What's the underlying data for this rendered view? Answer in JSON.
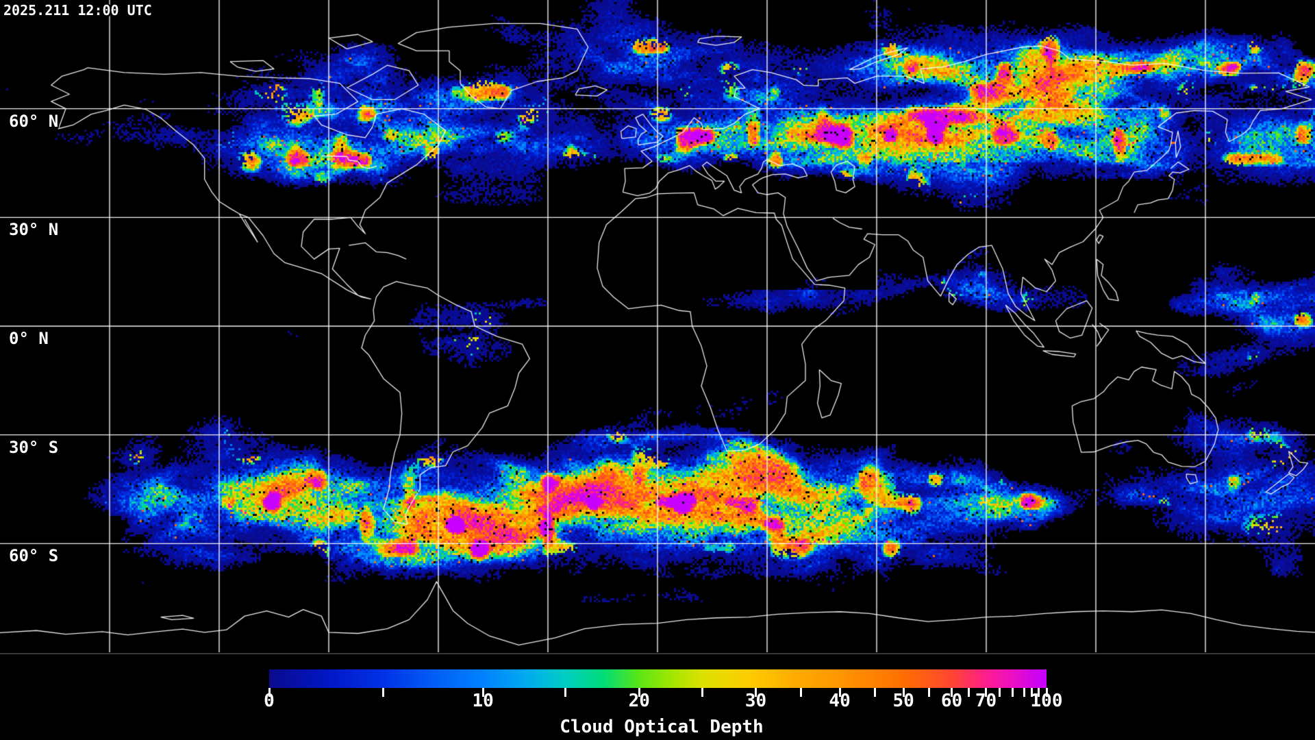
{
  "header": {
    "timestamp": "2025.211 12:00 UTC"
  },
  "map": {
    "latitude_labels": [
      {
        "label": "60° N",
        "lat": 60
      },
      {
        "label": "30° N",
        "lat": 30
      },
      {
        "label": "0° N",
        "lat": 0
      },
      {
        "label": "30° S",
        "lat": -30
      },
      {
        "label": "60° S",
        "lat": -60
      }
    ],
    "grid": {
      "lat_step_deg": 30,
      "lon_step_deg": 30,
      "line_color": "#ffffff"
    },
    "coastline_color": "#ffffff",
    "background_color": "#000000"
  },
  "colorbar": {
    "title": "Cloud Optical Depth",
    "min": 0,
    "max": 100,
    "text_color": "#ffffff",
    "ticks": [
      {
        "value": 0,
        "frac": 0.0,
        "labeled": true
      },
      {
        "value": 5,
        "frac": 0.147,
        "labeled": false
      },
      {
        "value": 10,
        "frac": 0.275,
        "labeled": true
      },
      {
        "value": 15,
        "frac": 0.381,
        "labeled": false
      },
      {
        "value": 20,
        "frac": 0.476,
        "labeled": true
      },
      {
        "value": 25,
        "frac": 0.557,
        "labeled": false
      },
      {
        "value": 30,
        "frac": 0.626,
        "labeled": true
      },
      {
        "value": 35,
        "frac": 0.684,
        "labeled": false
      },
      {
        "value": 40,
        "frac": 0.734,
        "labeled": true
      },
      {
        "value": 45,
        "frac": 0.779,
        "labeled": false
      },
      {
        "value": 50,
        "frac": 0.816,
        "labeled": true
      },
      {
        "value": 55,
        "frac": 0.849,
        "labeled": false
      },
      {
        "value": 60,
        "frac": 0.878,
        "labeled": true
      },
      {
        "value": 65,
        "frac": 0.9,
        "labeled": false
      },
      {
        "value": 70,
        "frac": 0.922,
        "labeled": true
      },
      {
        "value": 75,
        "frac": 0.94,
        "labeled": false
      },
      {
        "value": 80,
        "frac": 0.956,
        "labeled": false
      },
      {
        "value": 85,
        "frac": 0.971,
        "labeled": false
      },
      {
        "value": 90,
        "frac": 0.981,
        "labeled": false
      },
      {
        "value": 95,
        "frac": 0.99,
        "labeled": false
      },
      {
        "value": 100,
        "frac": 1.0,
        "labeled": true
      }
    ],
    "gradient_stops": [
      {
        "frac": 0.0,
        "color": "#0a0a8c"
      },
      {
        "frac": 0.08,
        "color": "#0018c8"
      },
      {
        "frac": 0.147,
        "color": "#0032e6"
      },
      {
        "frac": 0.21,
        "color": "#005cf5"
      },
      {
        "frac": 0.275,
        "color": "#0082ff"
      },
      {
        "frac": 0.33,
        "color": "#00aaf0"
      },
      {
        "frac": 0.381,
        "color": "#00cdc3"
      },
      {
        "frac": 0.43,
        "color": "#00dc78"
      },
      {
        "frac": 0.476,
        "color": "#5ae614"
      },
      {
        "frac": 0.52,
        "color": "#a5e600"
      },
      {
        "frac": 0.557,
        "color": "#dce100"
      },
      {
        "frac": 0.6,
        "color": "#f5d200"
      },
      {
        "frac": 0.626,
        "color": "#ffc800"
      },
      {
        "frac": 0.68,
        "color": "#ffaa00"
      },
      {
        "frac": 0.734,
        "color": "#ff9600"
      },
      {
        "frac": 0.816,
        "color": "#ff6e00"
      },
      {
        "frac": 0.878,
        "color": "#ff4632"
      },
      {
        "frac": 0.922,
        "color": "#ff1e8c"
      },
      {
        "frac": 0.956,
        "color": "#eb0fc3"
      },
      {
        "frac": 0.981,
        "color": "#d205e6"
      },
      {
        "frac": 1.0,
        "color": "#c800ff"
      }
    ]
  },
  "chart_data": {
    "type": "heatmap",
    "title": "Cloud Optical Depth",
    "timestamp": "2025.211 12:00 UTC",
    "projection": "equirectangular",
    "lat_range": [
      -90,
      90
    ],
    "lon_range": [
      -180,
      180
    ],
    "lat_gridline_step_deg": 30,
    "lon_gridline_step_deg": 30,
    "value_range": [
      0,
      100
    ],
    "scale": "nonlinear (compressed toward 100)",
    "colorbar_tick_values": [
      0,
      10,
      20,
      30,
      40,
      50,
      60,
      70,
      100
    ],
    "no_data_color": "#000000"
  }
}
